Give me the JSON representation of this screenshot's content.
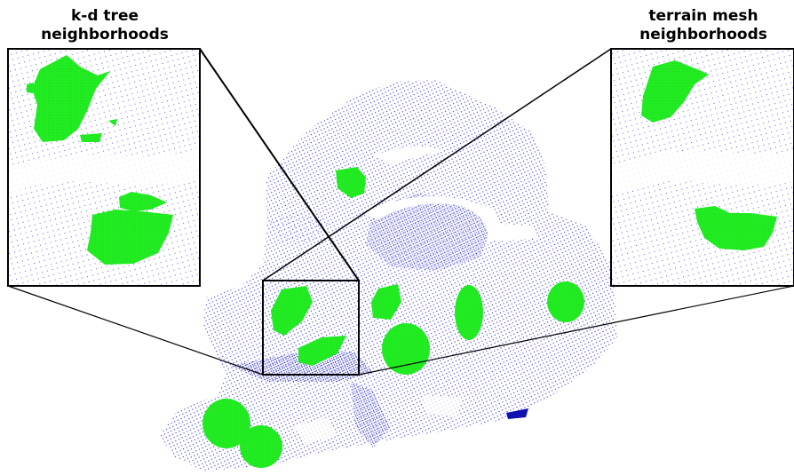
{
  "labels": {
    "left_title": [
      "k-d tree",
      "neighborhoods"
    ],
    "right_title": [
      "terrain mesh",
      "neighborhoods"
    ]
  },
  "colors": {
    "point_cloud": "#2a2ad8",
    "dense_strip": "#1010b0",
    "neighborhood": "#22ee22",
    "frame": "#000000",
    "background": "#ffffff"
  }
}
